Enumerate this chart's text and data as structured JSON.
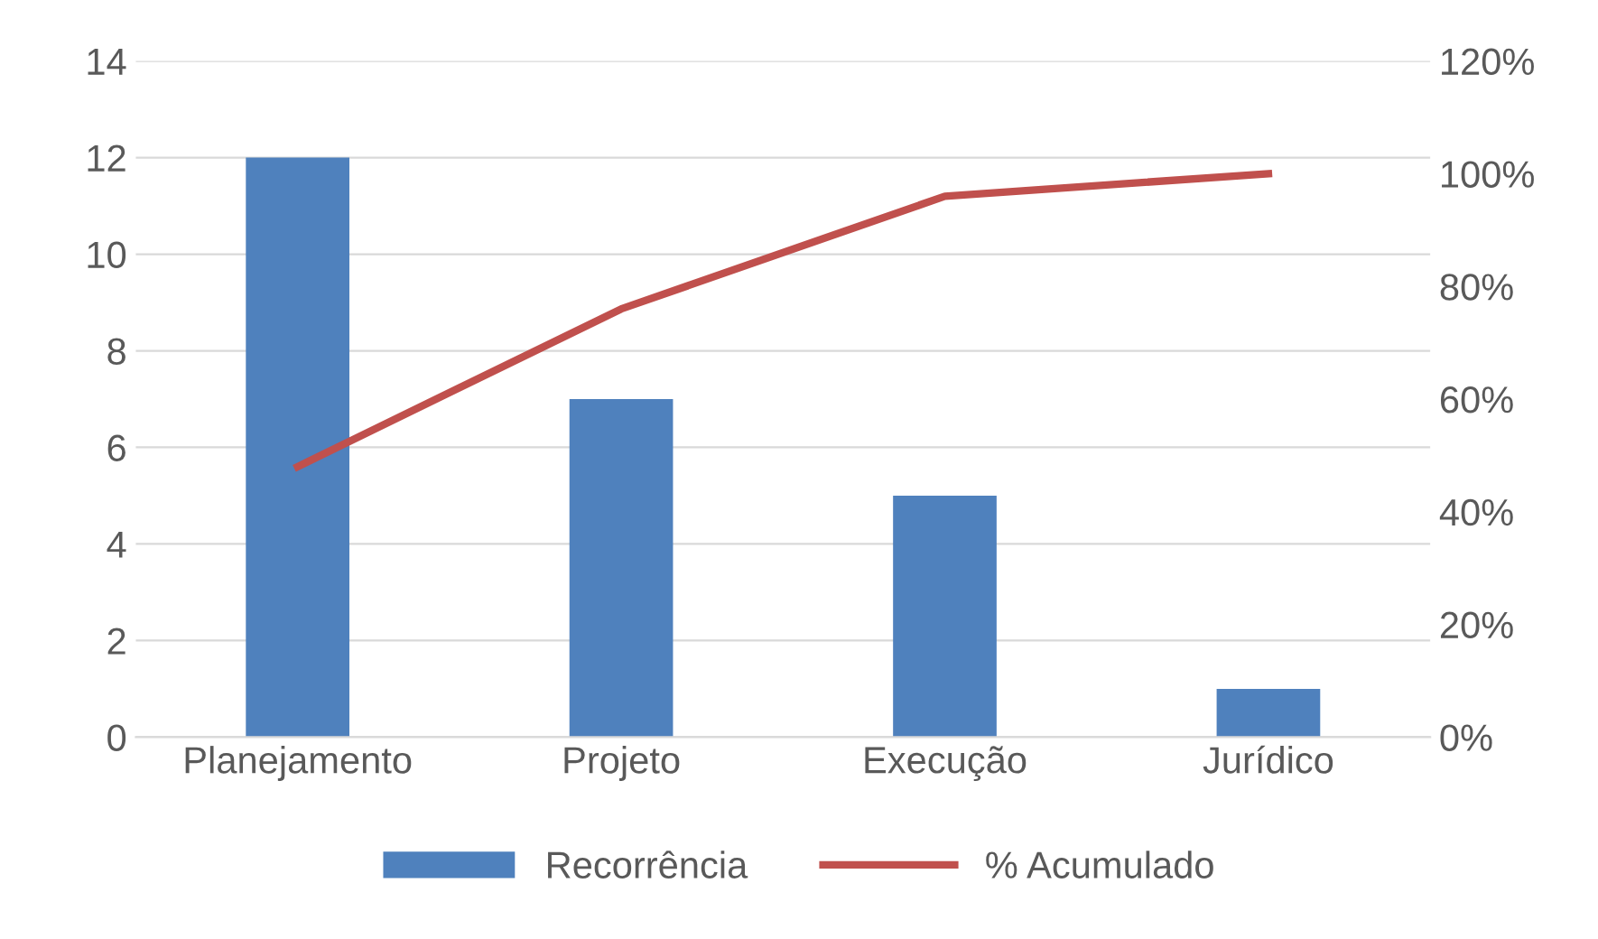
{
  "chart_data": {
    "type": "bar",
    "categories": [
      "Planejamento",
      "Projeto",
      "Execução",
      "Jurídico"
    ],
    "series": [
      {
        "name": "Recorrência",
        "color": "#4f81bd",
        "values": [
          12,
          7,
          5,
          1
        ]
      },
      {
        "name": "% Acumulado",
        "type": "line",
        "axis": "y2",
        "color": "#c0504d",
        "values": [
          48,
          76,
          96,
          100
        ]
      }
    ],
    "ylim": [
      0,
      14
    ],
    "yticks": [
      0,
      2,
      4,
      6,
      8,
      10,
      12,
      14
    ],
    "y2lim": [
      0,
      120
    ],
    "y2ticks": [
      {
        "value": 0,
        "label": "0%"
      },
      {
        "value": 20,
        "label": "20%"
      },
      {
        "value": 40,
        "label": "40%"
      },
      {
        "value": 60,
        "label": "60%"
      },
      {
        "value": 80,
        "label": "80%"
      },
      {
        "value": 100,
        "label": "100%"
      },
      {
        "value": 120,
        "label": "120%"
      }
    ],
    "grid": "y",
    "legend": "bottom"
  }
}
